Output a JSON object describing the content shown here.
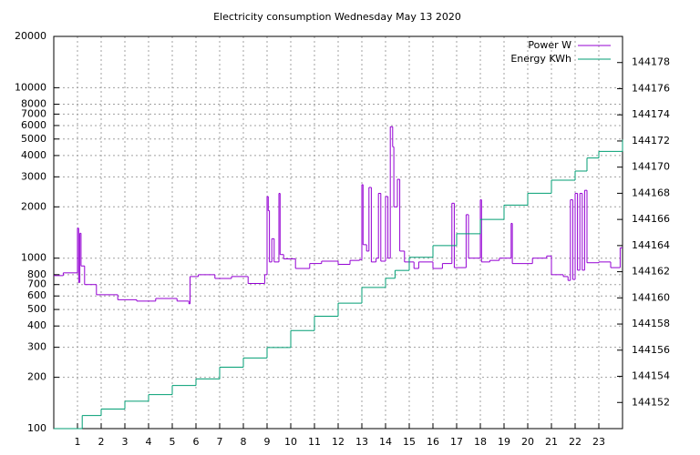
{
  "chart_data": {
    "type": "line",
    "title": "Electricity consumption Wednesday May 13 2020",
    "xlim": [
      0,
      24
    ],
    "xticks": [
      1,
      2,
      3,
      4,
      5,
      6,
      7,
      8,
      9,
      10,
      11,
      12,
      13,
      14,
      15,
      16,
      17,
      18,
      19,
      20,
      21,
      22,
      23
    ],
    "ylim": [
      100,
      20000
    ],
    "yticks": [
      100,
      200,
      300,
      400,
      500,
      600,
      700,
      800,
      1000,
      2000,
      3000,
      4000,
      5000,
      6000,
      7000,
      8000,
      10000,
      20000
    ],
    "log_scale": true,
    "y2lim": [
      144150,
      144180
    ],
    "y2ticks": [
      144152,
      144154,
      144156,
      144158,
      144160,
      144162,
      144164,
      144166,
      144168,
      144170,
      144172,
      144174,
      144176,
      144178
    ],
    "grid": true,
    "legend": "top-right",
    "step": true,
    "series": [
      {
        "name": "Power W",
        "color": "#9400d3",
        "x": [
          0,
          0.4,
          1.0,
          1.05,
          1.1,
          1.15,
          1.3,
          1.8,
          2.7,
          3.5,
          4.3,
          5.2,
          5.7,
          5.75,
          6.1,
          6.8,
          7.5,
          8.2,
          8.9,
          9.0,
          9.05,
          9.1,
          9.2,
          9.3,
          9.5,
          9.55,
          9.7,
          10.2,
          10.8,
          11.3,
          12.0,
          12.5,
          12.9,
          13.0,
          13.05,
          13.2,
          13.3,
          13.4,
          13.6,
          13.7,
          13.8,
          14.0,
          14.1,
          14.2,
          14.3,
          14.35,
          14.5,
          14.6,
          14.8,
          15.2,
          15.4,
          16.0,
          16.4,
          16.8,
          16.9,
          17.4,
          17.5,
          18.0,
          18.05,
          18.4,
          18.8,
          19.3,
          19.35,
          20.2,
          20.8,
          21.0,
          21.5,
          21.7,
          21.8,
          21.9,
          22.0,
          22.1,
          22.2,
          22.3,
          22.4,
          22.5,
          23.0,
          23.5,
          23.9
        ],
        "values": [
          790,
          820,
          1500,
          720,
          1400,
          900,
          700,
          610,
          570,
          560,
          580,
          560,
          540,
          780,
          800,
          760,
          780,
          710,
          800,
          2300,
          1900,
          950,
          1300,
          950,
          2400,
          1050,
          990,
          870,
          930,
          960,
          920,
          970,
          980,
          2700,
          1200,
          1100,
          2600,
          950,
          1000,
          2400,
          960,
          2300,
          1000,
          5900,
          4500,
          2000,
          2900,
          1100,
          950,
          870,
          950,
          870,
          930,
          2100,
          880,
          1800,
          1000,
          2200,
          950,
          970,
          1000,
          1600,
          930,
          1000,
          1030,
          800,
          780,
          740,
          2200,
          750,
          2400,
          850,
          2400,
          850,
          2500,
          940,
          950,
          880,
          1150
        ]
      },
      {
        "name": "Energy KWh",
        "color": "#009e73",
        "axis": "y2",
        "x": [
          0,
          1.2,
          2,
          3,
          4,
          5,
          6,
          7,
          8,
          9,
          10,
          11,
          12,
          13,
          14,
          14.4,
          15,
          16,
          17,
          18,
          19,
          20,
          21,
          22,
          22.5,
          23,
          24
        ],
        "values": [
          144150,
          144151.0,
          144151.5,
          144152.1,
          144152.6,
          144153.3,
          144153.8,
          144154.7,
          144155.4,
          144156.2,
          144157.5,
          144158.6,
          144159.6,
          144160.8,
          144161.5,
          144162.1,
          144163.1,
          144164.0,
          144164.9,
          144166.0,
          144167.1,
          144168.0,
          144169.0,
          144169.7,
          144170.7,
          144171.2,
          144172.1
        ]
      }
    ]
  }
}
